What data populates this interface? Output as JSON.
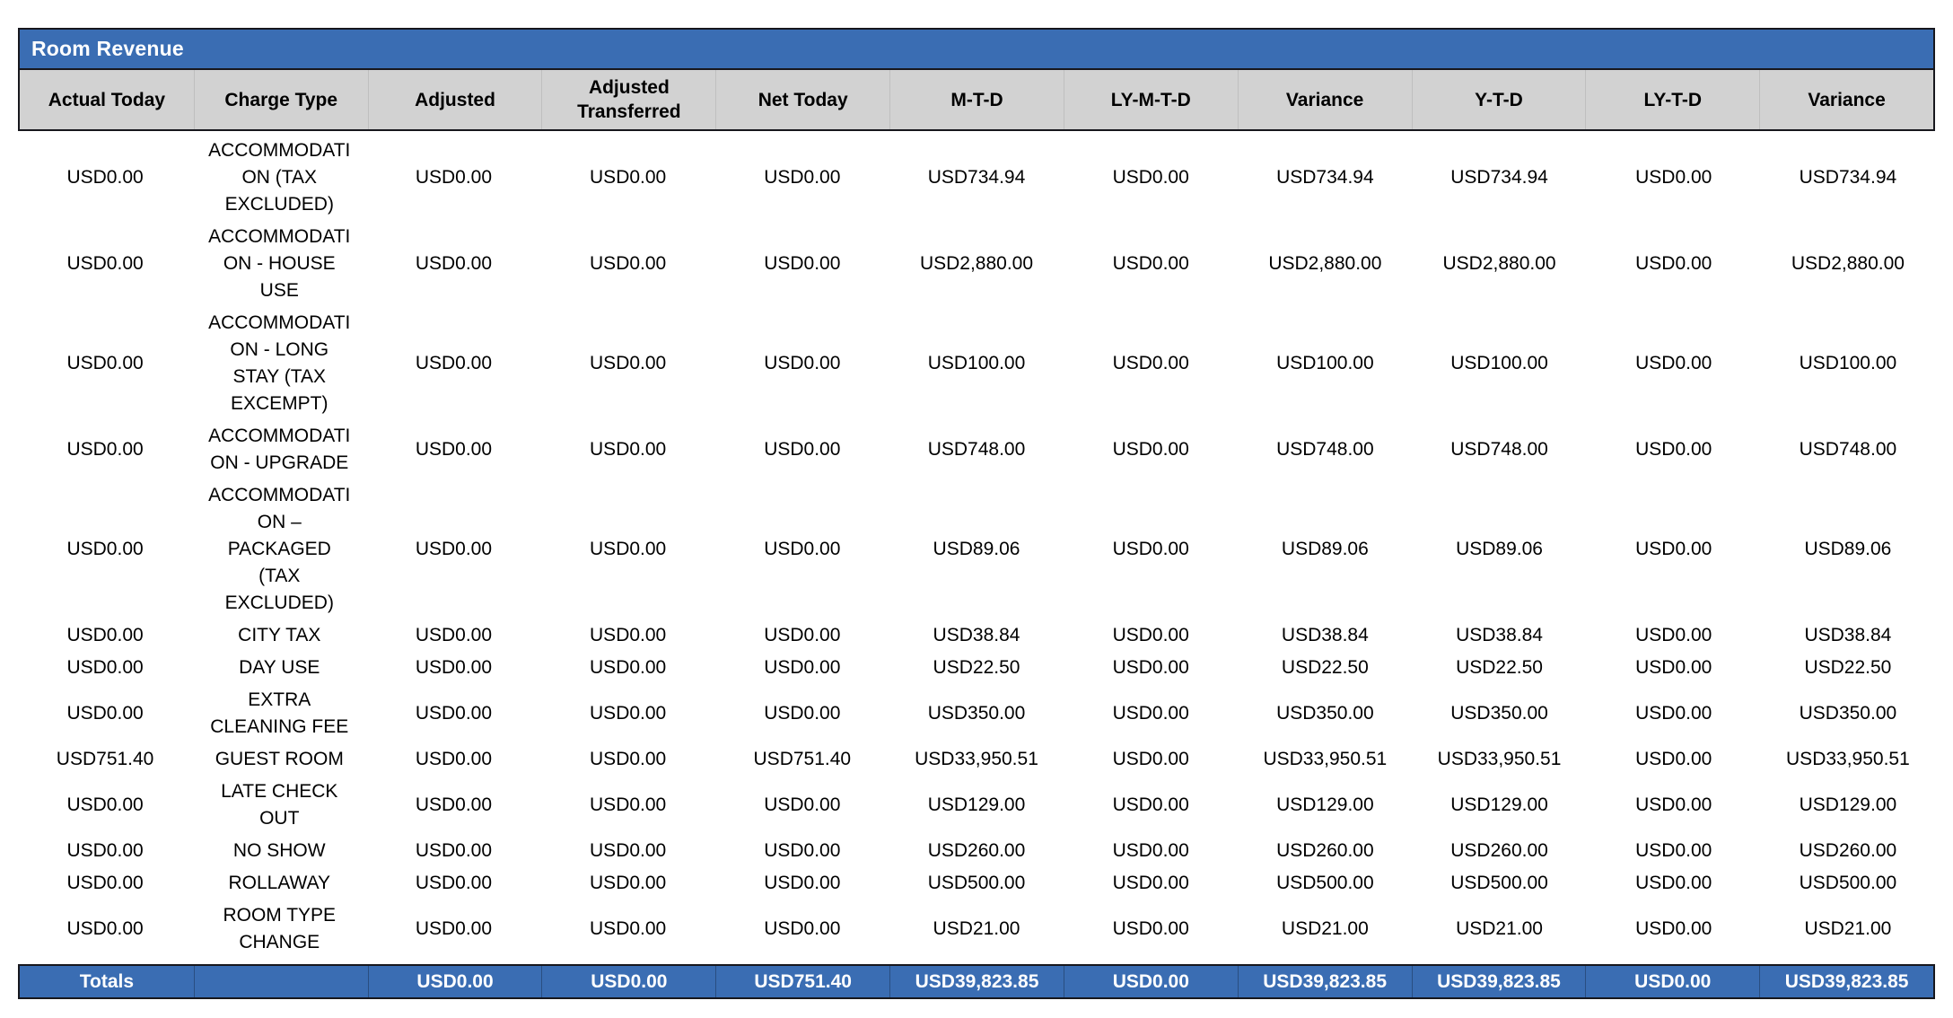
{
  "report": {
    "title": "Room Revenue",
    "columns": [
      "Actual Today",
      "Charge Type",
      "Adjusted",
      "Adjusted\nTransferred",
      "Net Today",
      "M-T-D",
      "LY-M-T-D",
      "Variance",
      "Y-T-D",
      "LY-T-D",
      "Variance"
    ],
    "rows": [
      [
        "USD0.00",
        "ACCOMMODATI\nON (TAX\nEXCLUDED)",
        "USD0.00",
        "USD0.00",
        "USD0.00",
        "USD734.94",
        "USD0.00",
        "USD734.94",
        "USD734.94",
        "USD0.00",
        "USD734.94"
      ],
      [
        "USD0.00",
        "ACCOMMODATI\nON - HOUSE\nUSE",
        "USD0.00",
        "USD0.00",
        "USD0.00",
        "USD2,880.00",
        "USD0.00",
        "USD2,880.00",
        "USD2,880.00",
        "USD0.00",
        "USD2,880.00"
      ],
      [
        "USD0.00",
        "ACCOMMODATI\nON - LONG\nSTAY (TAX\nEXCEMPT)",
        "USD0.00",
        "USD0.00",
        "USD0.00",
        "USD100.00",
        "USD0.00",
        "USD100.00",
        "USD100.00",
        "USD0.00",
        "USD100.00"
      ],
      [
        "USD0.00",
        "ACCOMMODATI\nON - UPGRADE",
        "USD0.00",
        "USD0.00",
        "USD0.00",
        "USD748.00",
        "USD0.00",
        "USD748.00",
        "USD748.00",
        "USD0.00",
        "USD748.00"
      ],
      [
        "USD0.00",
        "ACCOMMODATI\nON –\nPACKAGED\n(TAX\nEXCLUDED)",
        "USD0.00",
        "USD0.00",
        "USD0.00",
        "USD89.06",
        "USD0.00",
        "USD89.06",
        "USD89.06",
        "USD0.00",
        "USD89.06"
      ],
      [
        "USD0.00",
        "CITY TAX",
        "USD0.00",
        "USD0.00",
        "USD0.00",
        "USD38.84",
        "USD0.00",
        "USD38.84",
        "USD38.84",
        "USD0.00",
        "USD38.84"
      ],
      [
        "USD0.00",
        "DAY USE",
        "USD0.00",
        "USD0.00",
        "USD0.00",
        "USD22.50",
        "USD0.00",
        "USD22.50",
        "USD22.50",
        "USD0.00",
        "USD22.50"
      ],
      [
        "USD0.00",
        "EXTRA\nCLEANING FEE",
        "USD0.00",
        "USD0.00",
        "USD0.00",
        "USD350.00",
        "USD0.00",
        "USD350.00",
        "USD350.00",
        "USD0.00",
        "USD350.00"
      ],
      [
        "USD751.40",
        "GUEST ROOM",
        "USD0.00",
        "USD0.00",
        "USD751.40",
        "USD33,950.51",
        "USD0.00",
        "USD33,950.51",
        "USD33,950.51",
        "USD0.00",
        "USD33,950.51"
      ],
      [
        "USD0.00",
        "LATE CHECK\nOUT",
        "USD0.00",
        "USD0.00",
        "USD0.00",
        "USD129.00",
        "USD0.00",
        "USD129.00",
        "USD129.00",
        "USD0.00",
        "USD129.00"
      ],
      [
        "USD0.00",
        "NO SHOW",
        "USD0.00",
        "USD0.00",
        "USD0.00",
        "USD260.00",
        "USD0.00",
        "USD260.00",
        "USD260.00",
        "USD0.00",
        "USD260.00"
      ],
      [
        "USD0.00",
        "ROLLAWAY",
        "USD0.00",
        "USD0.00",
        "USD0.00",
        "USD500.00",
        "USD0.00",
        "USD500.00",
        "USD500.00",
        "USD0.00",
        "USD500.00"
      ],
      [
        "USD0.00",
        "ROOM TYPE\nCHANGE",
        "USD0.00",
        "USD0.00",
        "USD0.00",
        "USD21.00",
        "USD0.00",
        "USD21.00",
        "USD21.00",
        "USD0.00",
        "USD21.00"
      ]
    ],
    "totals": [
      "Totals",
      "",
      "USD0.00",
      "USD0.00",
      "USD751.40",
      "USD39,823.85",
      "USD0.00",
      "USD39,823.85",
      "USD39,823.85",
      "USD0.00",
      "USD39,823.85"
    ],
    "colors": {
      "accent_blue": "#3A6DB3",
      "header_gray": "#D2D2D2",
      "border_dark": "#17171D",
      "title_text": "#FFFFFF",
      "body_text": "#000000"
    }
  }
}
